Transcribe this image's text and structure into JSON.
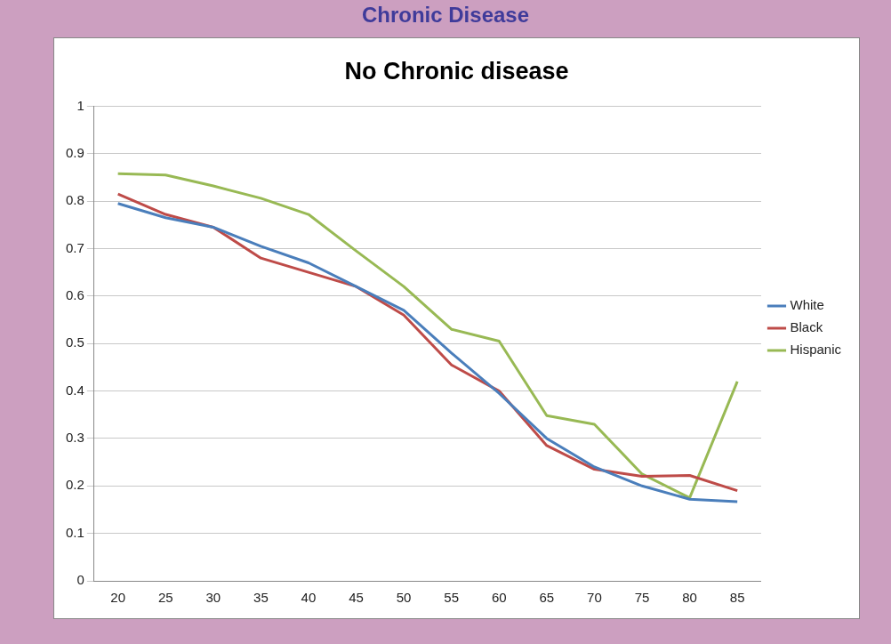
{
  "chart_data": {
    "type": "line",
    "title": "No Chronic disease",
    "annotations": [
      "Chronic Disease"
    ],
    "categories": [
      "20",
      "25",
      "30",
      "35",
      "40",
      "45",
      "50",
      "55",
      "60",
      "65",
      "70",
      "75",
      "80",
      "85"
    ],
    "series": [
      {
        "name": "White",
        "color": "#4a7ebb",
        "values": [
          0.795,
          0.765,
          0.745,
          0.705,
          0.67,
          0.62,
          0.57,
          0.48,
          0.395,
          0.3,
          0.24,
          0.2,
          0.172,
          0.167
        ]
      },
      {
        "name": "Black",
        "color": "#be4b48",
        "values": [
          0.815,
          0.772,
          0.745,
          0.68,
          0.65,
          0.62,
          0.56,
          0.455,
          0.4,
          0.285,
          0.235,
          0.22,
          0.222,
          0.19
        ]
      },
      {
        "name": "Hispanic",
        "color": "#98b954",
        "values": [
          0.858,
          0.855,
          0.832,
          0.806,
          0.772,
          0.695,
          0.62,
          0.53,
          0.505,
          0.348,
          0.33,
          0.225,
          0.175,
          0.42
        ]
      }
    ],
    "ylim": [
      0,
      1
    ],
    "yticks": [
      0,
      0.1,
      0.2,
      0.3,
      0.4,
      0.5,
      0.6,
      0.7,
      0.8,
      0.9,
      1
    ],
    "grid": "y",
    "legend": "right",
    "marker": "none",
    "line_style": "solid"
  }
}
